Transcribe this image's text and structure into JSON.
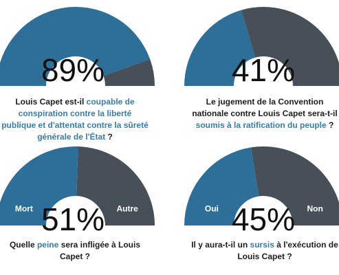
{
  "colors": {
    "primary": "#2e6f9a",
    "secondary": "#474f58",
    "highlight": "#3a7ca5"
  },
  "chart_data": [
    {
      "type": "pie",
      "value_label": "89%",
      "values": [
        89,
        11
      ],
      "segment_labels": [
        "",
        ""
      ],
      "question": [
        "Louis Capet est-il ",
        "coupable de conspiration contre la liberté publique et d'attentat contre la sûreté générale de l'État",
        " ?"
      ]
    },
    {
      "type": "pie",
      "value_label": "41%",
      "values": [
        41,
        59
      ],
      "segment_labels": [
        "",
        ""
      ],
      "question": [
        "Le jugement de la Convention nationale contre Louis Capet sera-t-il ",
        "soumis à la ratification du peuple",
        " ?"
      ]
    },
    {
      "type": "pie",
      "value_label": "51%",
      "values": [
        51,
        49
      ],
      "segment_labels": [
        "Mort",
        "Autre"
      ],
      "question": [
        "Quelle ",
        "peine",
        " sera infligée à Louis Capet ?"
      ]
    },
    {
      "type": "pie",
      "value_label": "45%",
      "values": [
        45,
        55
      ],
      "segment_labels": [
        "Oui",
        "Non"
      ],
      "question": [
        "Il y aura-t-il un ",
        "sursis",
        " à l'exécution de Louis Capet ?"
      ]
    }
  ]
}
